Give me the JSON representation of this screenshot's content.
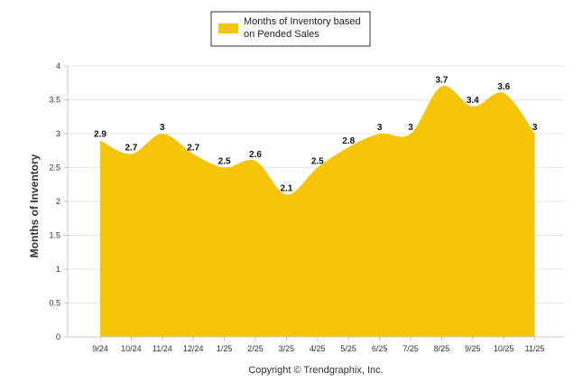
{
  "chart_data": {
    "type": "area",
    "categories": [
      "9/24",
      "10/24",
      "11/24",
      "12/24",
      "1/25",
      "2/25",
      "3/25",
      "4/25",
      "5/25",
      "6/25",
      "7/25",
      "8/25",
      "9/25",
      "10/25",
      "11/25"
    ],
    "series": [
      {
        "name": "Months of Inventory based on Pended Sales",
        "values": [
          2.9,
          2.7,
          3,
          2.7,
          2.5,
          2.6,
          2.1,
          2.5,
          2.8,
          3,
          3,
          3.7,
          3.4,
          3.6,
          3
        ],
        "labels": [
          "2.9",
          "2.7",
          "3",
          "2.7",
          "2.5",
          "2.6",
          "2.1",
          "2.5",
          "2.8",
          "3",
          "3",
          "3.7",
          "3.4",
          "3.6",
          "3"
        ],
        "color": "#F7C407"
      }
    ],
    "legend_lines": [
      "Months of Inventory based",
      "on Pended Sales"
    ],
    "legend_position": "top-center",
    "ylabel": "Months of Inventory",
    "xlabel": "",
    "ylim": [
      0,
      4
    ],
    "yticks": [
      0,
      0.5,
      1,
      1.5,
      2,
      2.5,
      3,
      3.5,
      4
    ],
    "ytick_labels": [
      "0",
      "0.5",
      "1",
      "1.5",
      "2",
      "2.5",
      "3",
      "3.5",
      "4"
    ],
    "grid": true,
    "credit": "Copyright © Trendgraphix, Inc."
  }
}
